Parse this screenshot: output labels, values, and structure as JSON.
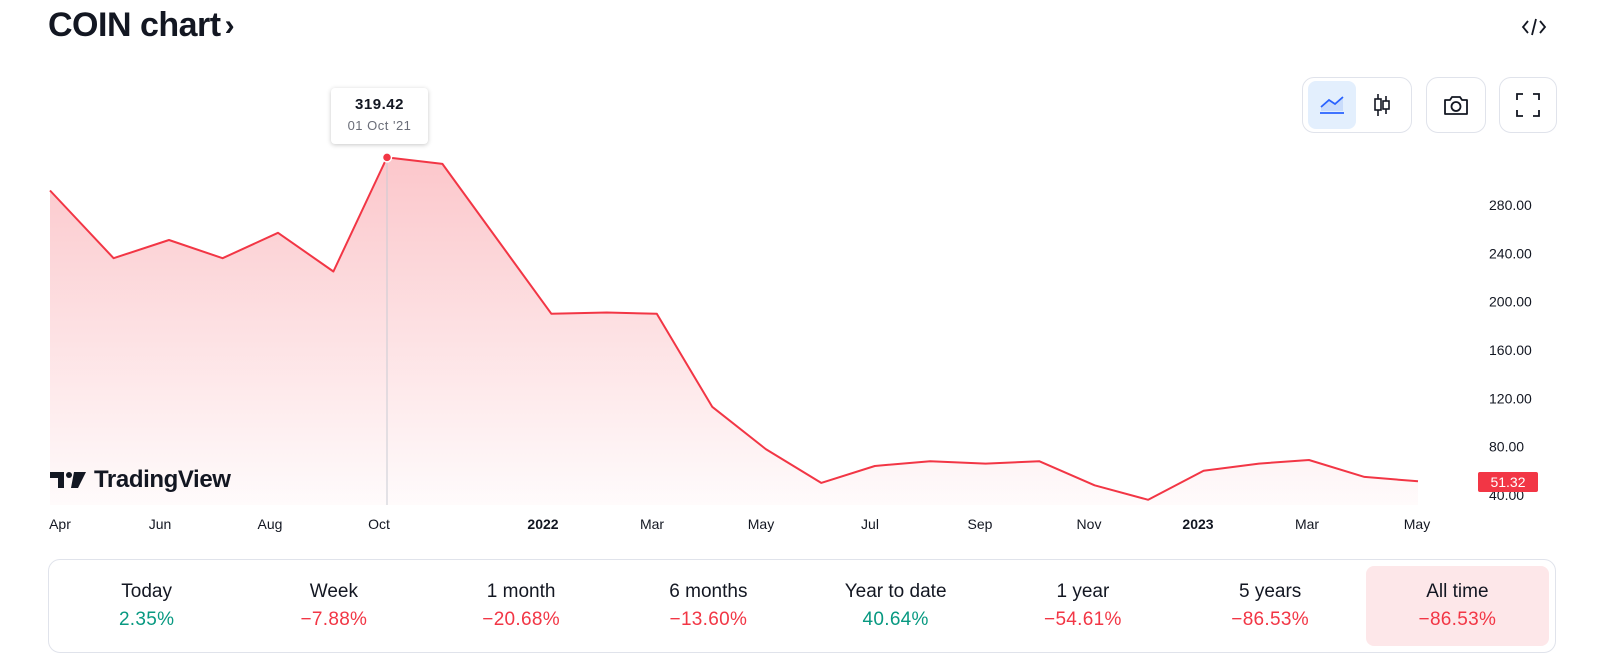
{
  "header": {
    "title": "COIN chart",
    "chevron": "›"
  },
  "toolbar": {
    "embed_icon": "code-icon",
    "line_icon": "area-chart-icon",
    "candle_icon": "candles-icon",
    "snapshot_icon": "camera-icon",
    "fullscreen_icon": "fullscreen-icon"
  },
  "tooltip": {
    "value": "319.42",
    "date": "01 Oct '21"
  },
  "last_price": "51.32",
  "brand": "TradingView",
  "colors": {
    "line": "#f23645",
    "positive": "#089981",
    "negative": "#f23645",
    "active_bg": "#fde7e9"
  },
  "chart_data": {
    "type": "area",
    "series": [
      {
        "values": [
          {
            "x": "2021-04-14",
            "y": 292
          },
          {
            "x": "2021-05-01",
            "y": 236
          },
          {
            "x": "2021-06-01",
            "y": 251
          },
          {
            "x": "2021-07-01",
            "y": 236
          },
          {
            "x": "2021-08-01",
            "y": 257
          },
          {
            "x": "2021-09-01",
            "y": 225
          },
          {
            "x": "2021-10-01",
            "y": 319.42
          },
          {
            "x": "2021-11-01",
            "y": 314
          },
          {
            "x": "2022-01-01",
            "y": 190
          },
          {
            "x": "2022-02-01",
            "y": 191
          },
          {
            "x": "2022-03-01",
            "y": 190
          },
          {
            "x": "2022-04-01",
            "y": 113
          },
          {
            "x": "2022-05-01",
            "y": 78
          },
          {
            "x": "2022-06-01",
            "y": 50
          },
          {
            "x": "2022-07-01",
            "y": 64
          },
          {
            "x": "2022-08-01",
            "y": 68
          },
          {
            "x": "2022-09-01",
            "y": 66
          },
          {
            "x": "2022-10-01",
            "y": 68
          },
          {
            "x": "2022-11-01",
            "y": 48
          },
          {
            "x": "2022-12-01",
            "y": 36
          },
          {
            "x": "2023-01-01",
            "y": 60
          },
          {
            "x": "2023-02-01",
            "y": 66
          },
          {
            "x": "2023-03-01",
            "y": 69
          },
          {
            "x": "2023-04-01",
            "y": 55
          },
          {
            "x": "2023-05-01",
            "y": 51.32
          }
        ]
      }
    ],
    "y_ticks": [
      "280.00",
      "240.00",
      "200.00",
      "160.00",
      "120.00",
      "80.00",
      "40.00"
    ],
    "x_ticks": [
      {
        "label": "Apr",
        "year": false
      },
      {
        "label": "Jun",
        "year": false
      },
      {
        "label": "Aug",
        "year": false
      },
      {
        "label": "Oct",
        "year": false
      },
      {
        "label": "2022",
        "year": true
      },
      {
        "label": "Mar",
        "year": false
      },
      {
        "label": "May",
        "year": false
      },
      {
        "label": "Jul",
        "year": false
      },
      {
        "label": "Sep",
        "year": false
      },
      {
        "label": "Nov",
        "year": false
      },
      {
        "label": "2023",
        "year": true
      },
      {
        "label": "Mar",
        "year": false
      },
      {
        "label": "May",
        "year": false
      }
    ],
    "ylim": [
      40,
      280
    ]
  },
  "periods": [
    {
      "label": "Today",
      "value": "2.35%",
      "trend": "pos",
      "active": false
    },
    {
      "label": "Week",
      "value": "−7.88%",
      "trend": "neg",
      "active": false
    },
    {
      "label": "1 month",
      "value": "−20.68%",
      "trend": "neg",
      "active": false
    },
    {
      "label": "6 months",
      "value": "−13.60%",
      "trend": "neg",
      "active": false
    },
    {
      "label": "Year to date",
      "value": "40.64%",
      "trend": "pos",
      "active": false
    },
    {
      "label": "1 year",
      "value": "−54.61%",
      "trend": "neg",
      "active": false
    },
    {
      "label": "5 years",
      "value": "−86.53%",
      "trend": "neg",
      "active": false
    },
    {
      "label": "All time",
      "value": "−86.53%",
      "trend": "neg",
      "active": true
    }
  ]
}
